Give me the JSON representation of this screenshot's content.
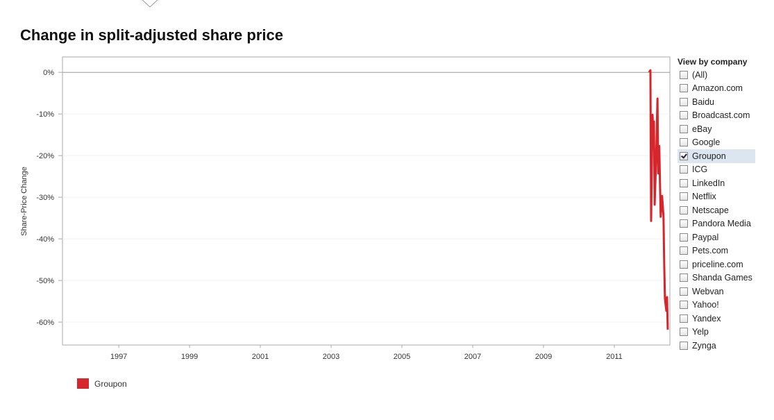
{
  "chart_data": {
    "type": "line",
    "title": "Change in split-adjusted share price",
    "y_label": "Share-Price Change",
    "x": [
      2011.98,
      2012.02,
      2012.04,
      2012.08,
      2012.1,
      2012.12,
      2012.14,
      2012.18,
      2012.22,
      2012.24,
      2012.27,
      2012.31,
      2012.35,
      2012.39,
      2012.41,
      2012.43,
      2012.47,
      2012.49,
      2012.51
    ],
    "series": [
      {
        "name": "Groupon",
        "color": "#d7262b",
        "values": [
          0,
          0.5,
          -35.7,
          -10.2,
          -14.3,
          -11.8,
          -31.8,
          -21,
          -6.3,
          -24.3,
          -17.7,
          -34.7,
          -29.7,
          -34.7,
          -46,
          -54.3,
          -57.3,
          -54,
          -61.8
        ]
      }
    ],
    "xlim": [
      1995.41,
      2012.57
    ],
    "xticks": [
      1997,
      1999,
      2001,
      2003,
      2005,
      2007,
      2009,
      2011
    ],
    "ylim": [
      -65.5,
      3.7
    ],
    "yticks": [
      {
        "value": 0,
        "label": "0%"
      },
      {
        "value": -10,
        "label": "-10%"
      },
      {
        "value": -20,
        "label": "-20%"
      },
      {
        "value": -30,
        "label": "-30%"
      },
      {
        "value": -40,
        "label": "-40%"
      },
      {
        "value": -50,
        "label": "-50%"
      },
      {
        "value": -60,
        "label": "-60%"
      }
    ],
    "grid": true
  },
  "filter": {
    "title": "View by company",
    "items": [
      {
        "label": "(All)",
        "checked": false
      },
      {
        "label": "Amazon.com",
        "checked": false
      },
      {
        "label": "Baidu",
        "checked": false
      },
      {
        "label": "Broadcast.com",
        "checked": false
      },
      {
        "label": "eBay",
        "checked": false
      },
      {
        "label": "Google",
        "checked": false
      },
      {
        "label": "Groupon",
        "checked": true
      },
      {
        "label": "ICG",
        "checked": false
      },
      {
        "label": "LinkedIn",
        "checked": false
      },
      {
        "label": "Netflix",
        "checked": false
      },
      {
        "label": "Netscape",
        "checked": false
      },
      {
        "label": "Pandora Media",
        "checked": false
      },
      {
        "label": "Paypal",
        "checked": false
      },
      {
        "label": "Pets.com",
        "checked": false
      },
      {
        "label": "priceline.com",
        "checked": false
      },
      {
        "label": "Shanda Games",
        "checked": false
      },
      {
        "label": "Webvan",
        "checked": false
      },
      {
        "label": "Yahoo!",
        "checked": false
      },
      {
        "label": "Yandex",
        "checked": false
      },
      {
        "label": "Yelp",
        "checked": false
      },
      {
        "label": "Zynga",
        "checked": false
      }
    ]
  }
}
